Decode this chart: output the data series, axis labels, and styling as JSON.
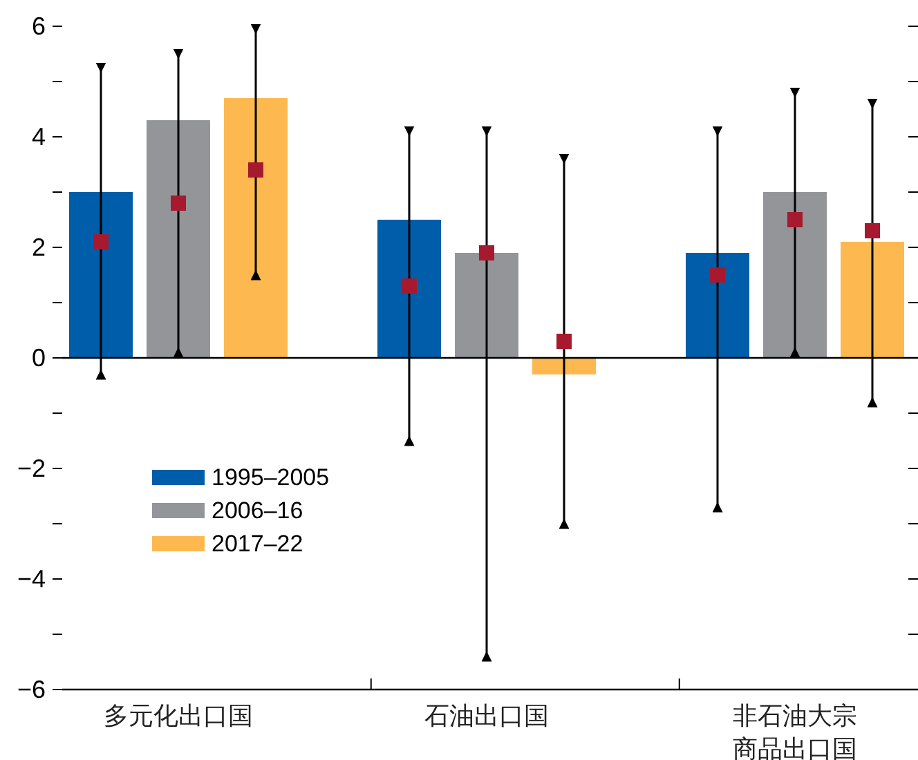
{
  "chart_data": {
    "type": "bar",
    "categories": [
      "多元化出口国",
      "石油出口国",
      "非石油大宗商品出口国"
    ],
    "series": [
      {
        "name": "1995–2005",
        "color": "#005daa",
        "values": [
          3.0,
          2.5,
          1.9
        ]
      },
      {
        "name": "2006–16",
        "color": "#939598",
        "values": [
          4.3,
          1.9,
          3.0
        ]
      },
      {
        "name": "2017–22",
        "color": "#fdb94f",
        "values": [
          4.7,
          -0.3,
          2.1
        ]
      },
      {
        "type": "scatter",
        "color": "#a6192e",
        "marker": "square",
        "values": [
          2.1,
          1.3,
          1.5
        ],
        "errors": [
          [
            -0.3,
            5.25
          ],
          [
            -1.5,
            4.1
          ],
          [
            -2.7,
            4.1
          ]
        ]
      },
      {
        "type": "scatter",
        "color": "#a6192e",
        "marker": "square",
        "values": [
          2.8,
          1.9,
          2.5
        ],
        "errors": [
          [
            0.1,
            5.5
          ],
          [
            -5.4,
            4.1
          ],
          [
            0.1,
            4.8
          ]
        ]
      },
      {
        "type": "scatter",
        "color": "#a6192e",
        "marker": "square",
        "values": [
          3.4,
          0.3,
          2.3
        ],
        "errors": [
          [
            1.5,
            5.95
          ],
          [
            -3.0,
            3.6
          ],
          [
            -0.8,
            4.6
          ]
        ]
      }
    ],
    "ylim": [
      -6,
      6
    ],
    "yticks": [
      -6,
      {
        "value": -5,
        "label": null
      },
      -4,
      {
        "value": -3,
        "label": null
      },
      -2,
      {
        "value": -1,
        "label": null
      },
      0,
      {
        "value": 1,
        "label": null
      },
      2,
      {
        "value": 3,
        "label": null
      },
      4,
      {
        "value": 5,
        "label": null
      },
      6
    ],
    "grid": false,
    "legend": "bottom left"
  }
}
